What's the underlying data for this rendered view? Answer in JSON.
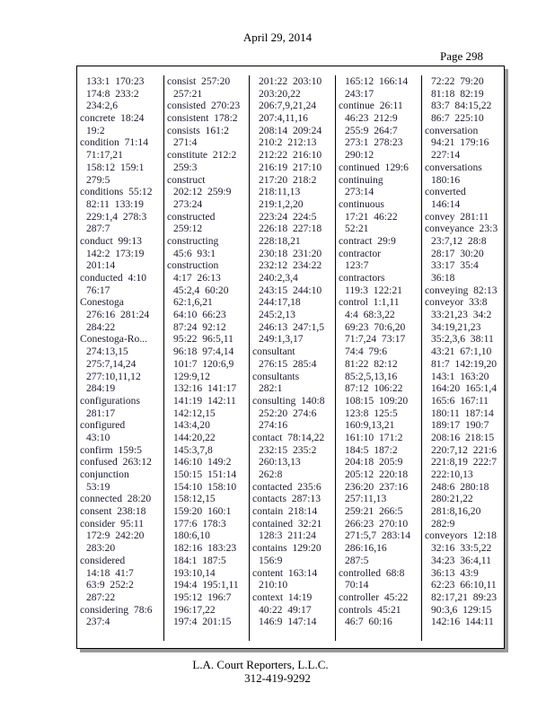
{
  "header": {
    "date": "April 29, 2014",
    "page": "Page 298"
  },
  "footer": {
    "company": "L.A. Court Reporters, L.L.C.",
    "phone": "312-419-9292"
  },
  "columns": [
    [
      {
        "refs": "133:1  170:23"
      },
      {
        "refs": "174:8  233:2"
      },
      {
        "refs": "234:2,6"
      },
      {
        "term": "concrete",
        "refs": "18:24"
      },
      {
        "refs": "19:2"
      },
      {
        "term": "condition",
        "refs": "71:14"
      },
      {
        "refs": "71:17,21"
      },
      {
        "refs": "158:12  159:1"
      },
      {
        "refs": "279:5"
      },
      {
        "term": "conditions",
        "refs": "55:12"
      },
      {
        "refs": "82:11  133:19"
      },
      {
        "refs": "229:1,4  278:3"
      },
      {
        "refs": "287:7"
      },
      {
        "term": "conduct",
        "refs": "99:13"
      },
      {
        "refs": "142:2  173:19"
      },
      {
        "refs": "201:14"
      },
      {
        "term": "conducted",
        "refs": "4:10"
      },
      {
        "refs": "76:17"
      },
      {
        "term": "Conestoga",
        "refs": ""
      },
      {
        "refs": "276:16  281:24"
      },
      {
        "refs": "284:22"
      },
      {
        "term": "Conestoga-Ro...",
        "refs": ""
      },
      {
        "refs": "274:13,15"
      },
      {
        "refs": "275:7,14,24"
      },
      {
        "refs": "277:10,11,12"
      },
      {
        "refs": "284:19"
      },
      {
        "term": "configurations",
        "refs": ""
      },
      {
        "refs": "281:17"
      },
      {
        "term": "configured",
        "refs": ""
      },
      {
        "refs": "43:10"
      },
      {
        "term": "confirm",
        "refs": "159:5"
      },
      {
        "term": "confused",
        "refs": "263:12"
      },
      {
        "term": "conjunction",
        "refs": ""
      },
      {
        "refs": "53:19"
      },
      {
        "term": "connected",
        "refs": "28:20"
      },
      {
        "term": "consent",
        "refs": "238:18"
      },
      {
        "term": "consider",
        "refs": "95:11"
      },
      {
        "refs": "172:9  242:20"
      },
      {
        "refs": "283:20"
      },
      {
        "term": "considered",
        "refs": ""
      },
      {
        "refs": "14:18  41:7"
      },
      {
        "refs": "63:9  252:2"
      },
      {
        "refs": "287:22"
      },
      {
        "term": "considering",
        "refs": "78:6"
      },
      {
        "refs": "237:4"
      }
    ],
    [
      {
        "term": "consist",
        "refs": "257:20"
      },
      {
        "refs": "257:21"
      },
      {
        "term": "consisted",
        "refs": "270:23"
      },
      {
        "term": "consistent",
        "refs": "178:2"
      },
      {
        "term": "consists",
        "refs": "161:2"
      },
      {
        "refs": "271:4"
      },
      {
        "term": "constitute",
        "refs": "212:2"
      },
      {
        "refs": "259:3"
      },
      {
        "term": "construct",
        "refs": ""
      },
      {
        "refs": "202:12  259:9"
      },
      {
        "refs": "273:24"
      },
      {
        "term": "constructed",
        "refs": ""
      },
      {
        "refs": "259:12"
      },
      {
        "term": "constructing",
        "refs": ""
      },
      {
        "refs": "45:6  93:1"
      },
      {
        "term": "construction",
        "refs": ""
      },
      {
        "refs": "4:17  26:13"
      },
      {
        "refs": "45:2,4  60:20"
      },
      {
        "refs": "62:1,6,21"
      },
      {
        "refs": "64:10  66:23"
      },
      {
        "refs": "87:24  92:12"
      },
      {
        "refs": "95:22  96:5,11"
      },
      {
        "refs": "96:18  97:4,14"
      },
      {
        "refs": "101:7  120:6,9"
      },
      {
        "refs": "129:9,12"
      },
      {
        "refs": "132:16  141:17"
      },
      {
        "refs": "141:19  142:11"
      },
      {
        "refs": "142:12,15"
      },
      {
        "refs": "143:4,20"
      },
      {
        "refs": "144:20,22"
      },
      {
        "refs": "145:3,7,8"
      },
      {
        "refs": "146:10  149:2"
      },
      {
        "refs": "150:15  151:14"
      },
      {
        "refs": "154:10  158:10"
      },
      {
        "refs": "158:12,15"
      },
      {
        "refs": "159:20  160:1"
      },
      {
        "refs": "177:6  178:3"
      },
      {
        "refs": "180:6,10"
      },
      {
        "refs": "182:16  183:23"
      },
      {
        "refs": "184:1  187:5"
      },
      {
        "refs": "193:10,14"
      },
      {
        "refs": "194:4  195:1,11"
      },
      {
        "refs": "195:12  196:7"
      },
      {
        "refs": "196:17,22"
      },
      {
        "refs": "197:4  201:15"
      }
    ],
    [
      {
        "refs": "201:22  203:10"
      },
      {
        "refs": "203:20,22"
      },
      {
        "refs": "206:7,9,21,24"
      },
      {
        "refs": "207:4,11,16"
      },
      {
        "refs": "208:14  209:24"
      },
      {
        "refs": "210:2  212:13"
      },
      {
        "refs": "212:22  216:10"
      },
      {
        "refs": "216:19  217:10"
      },
      {
        "refs": "217:20  218:2"
      },
      {
        "refs": "218:11,13"
      },
      {
        "refs": "219:1,2,20"
      },
      {
        "refs": "223:24  224:5"
      },
      {
        "refs": "226:18  227:18"
      },
      {
        "refs": "228:18,21"
      },
      {
        "refs": "230:18  231:20"
      },
      {
        "refs": "232:12  234:22"
      },
      {
        "refs": "240:2,3,4"
      },
      {
        "refs": "243:15  244:10"
      },
      {
        "refs": "244:17,18"
      },
      {
        "refs": "245:2,13"
      },
      {
        "refs": "246:13  247:1,5"
      },
      {
        "refs": "249:1,3,17"
      },
      {
        "term": "consultant",
        "refs": ""
      },
      {
        "refs": "276:15  285:4"
      },
      {
        "term": "consultants",
        "refs": ""
      },
      {
        "refs": "282:1"
      },
      {
        "term": "consulting",
        "refs": "140:8"
      },
      {
        "refs": "252:20  274:6"
      },
      {
        "refs": "274:16"
      },
      {
        "term": "contact",
        "refs": "78:14,22"
      },
      {
        "refs": "232:15  235:2"
      },
      {
        "refs": "260:13,13"
      },
      {
        "refs": "262:8"
      },
      {
        "term": "contacted",
        "refs": "235:6"
      },
      {
        "term": "contacts",
        "refs": "287:13"
      },
      {
        "term": "contain",
        "refs": "218:14"
      },
      {
        "term": "contained",
        "refs": "32:21"
      },
      {
        "refs": "128:3  211:24"
      },
      {
        "term": "contains",
        "refs": "129:20"
      },
      {
        "refs": "156:9"
      },
      {
        "term": "content",
        "refs": "163:14"
      },
      {
        "refs": "210:10"
      },
      {
        "term": "context",
        "refs": "14:19"
      },
      {
        "refs": "40:22  49:17"
      },
      {
        "refs": "146:9  147:14"
      }
    ],
    [
      {
        "refs": "165:12  166:14"
      },
      {
        "refs": "243:17"
      },
      {
        "term": "continue",
        "refs": "26:11"
      },
      {
        "refs": "46:23  212:9"
      },
      {
        "refs": "255:9  264:7"
      },
      {
        "refs": "273:1  278:23"
      },
      {
        "refs": "290:12"
      },
      {
        "term": "continued",
        "refs": "129:6"
      },
      {
        "term": "continuing",
        "refs": ""
      },
      {
        "refs": "273:14"
      },
      {
        "term": "continuous",
        "refs": ""
      },
      {
        "refs": "17:21  46:22"
      },
      {
        "refs": "52:21"
      },
      {
        "term": "contract",
        "refs": "29:9"
      },
      {
        "term": "contractor",
        "refs": ""
      },
      {
        "refs": "123:7"
      },
      {
        "term": "contractors",
        "refs": ""
      },
      {
        "refs": "119:3  122:21"
      },
      {
        "term": "control",
        "refs": "1:1,11"
      },
      {
        "refs": "4:4  68:3,22"
      },
      {
        "refs": "69:23  70:6,20"
      },
      {
        "refs": "71:7,24  73:17"
      },
      {
        "refs": "74:4  79:6"
      },
      {
        "refs": "81:22  82:12"
      },
      {
        "refs": "85:2,5,13,16"
      },
      {
        "refs": "87:12  106:22"
      },
      {
        "refs": "108:15  109:20"
      },
      {
        "refs": "123:8  125:5"
      },
      {
        "refs": "160:9,13,21"
      },
      {
        "refs": "161:10  171:2"
      },
      {
        "refs": "184:5  187:2"
      },
      {
        "refs": "204:18  205:9"
      },
      {
        "refs": "205:12  220:18"
      },
      {
        "refs": "236:20  237:16"
      },
      {
        "refs": "257:11,13"
      },
      {
        "refs": "259:21  266:5"
      },
      {
        "refs": "266:23  270:10"
      },
      {
        "refs": "271:5,7  283:14"
      },
      {
        "refs": "286:16,16"
      },
      {
        "refs": "287:5"
      },
      {
        "term": "controlled",
        "refs": "68:8"
      },
      {
        "refs": "70:14"
      },
      {
        "term": "controller",
        "refs": "45:22"
      },
      {
        "term": "controls",
        "refs": "45:21"
      },
      {
        "refs": "46:7  60:16"
      }
    ],
    [
      {
        "refs": "72:22  79:20"
      },
      {
        "refs": "81:18  82:19"
      },
      {
        "refs": "83:7  84:15,22"
      },
      {
        "refs": "86:7  225:10"
      },
      {
        "term": "conversation",
        "refs": ""
      },
      {
        "refs": "94:21  179:16"
      },
      {
        "refs": "227:14"
      },
      {
        "term": "conversations",
        "refs": ""
      },
      {
        "refs": "180:16"
      },
      {
        "term": "converted",
        "refs": ""
      },
      {
        "refs": "146:14"
      },
      {
        "term": "convey",
        "refs": "281:11"
      },
      {
        "term": "conveyance",
        "refs": "23:3"
      },
      {
        "refs": "23:7,12  28:8"
      },
      {
        "refs": "28:17  30:20"
      },
      {
        "refs": "33:17  35:4"
      },
      {
        "refs": "36:18"
      },
      {
        "term": "conveying",
        "refs": "82:13"
      },
      {
        "term": "conveyor",
        "refs": "33:8"
      },
      {
        "refs": "33:21,23  34:2"
      },
      {
        "refs": "34:19,21,23"
      },
      {
        "refs": "35:2,3,6  38:11"
      },
      {
        "refs": "43:21  67:1,10"
      },
      {
        "refs": "81:7  142:19,20"
      },
      {
        "refs": "143:1  163:20"
      },
      {
        "refs": "164:20  165:1,4"
      },
      {
        "refs": "165:6  167:11"
      },
      {
        "refs": "180:11  187:14"
      },
      {
        "refs": "189:17  190:7"
      },
      {
        "refs": "208:16  218:15"
      },
      {
        "refs": "220:7,12  221:6"
      },
      {
        "refs": "221:8,19  222:7"
      },
      {
        "refs": "222:10,13"
      },
      {
        "refs": "248:6  280:18"
      },
      {
        "refs": "280:21,22"
      },
      {
        "refs": "281:8,16,20"
      },
      {
        "refs": "282:9"
      },
      {
        "term": "conveyors",
        "refs": "12:18"
      },
      {
        "refs": "32:16  33:5,22"
      },
      {
        "refs": "34:23  36:4,11"
      },
      {
        "refs": "36:13  43:9"
      },
      {
        "refs": "62:23  66:10,11"
      },
      {
        "refs": "82:17,21  89:23"
      },
      {
        "refs": "90:3,6  129:15"
      },
      {
        "refs": "142:16  144:11"
      }
    ]
  ]
}
